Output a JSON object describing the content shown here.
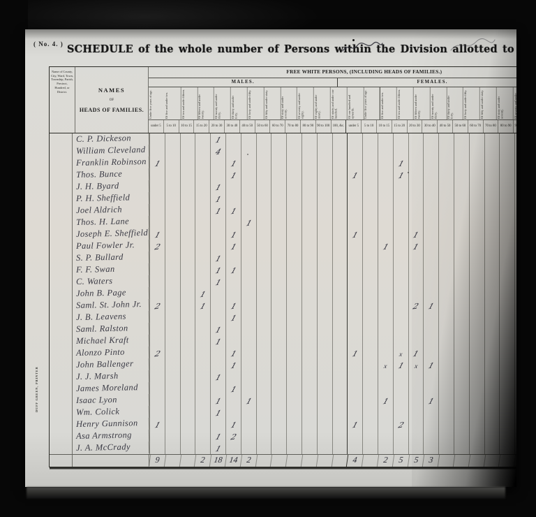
{
  "page": {
    "form_number": "( No. 4. )",
    "title": "SCHEDULE of the whole number of Persons within the Division allotted to",
    "printer_note": "DUFF GREEN, PRINTER"
  },
  "table": {
    "county_header": "Name of County, City, Ward, Town, Township, Parish, Precinct, Hundred, or District.",
    "names_header_line1": "NAMES",
    "names_header_line2": "OF",
    "names_header_line3": "HEADS OF FAMILIES.",
    "section_header": "FREE WHITE PERSONS, (INCLUDING HEADS OF FAMILIES.)",
    "males_header": "MALES.",
    "females_header": "FEMALES.",
    "age_labels_long": [
      "Under five years of age.",
      "Of five and under ten.",
      "Of ten and under fifteen.",
      "Of fifteen and under twenty.",
      "Of twenty and under thirty.",
      "Of thirty and under forty.",
      "Of forty and under fifty.",
      "Of fifty and under sixty.",
      "Of sixty and under seventy.",
      "Of seventy and under eighty.",
      "Of eighty and under ninety.",
      "Of ninety and under one hundred.",
      "Of one hundred and upwards."
    ],
    "age_labels_short": [
      "under 5",
      "5 to 10",
      "10 to 15",
      "15 to 20",
      "20 to 30",
      "30 to 40",
      "40 to 50",
      "50 to 60",
      "60 to 70",
      "70 to 80",
      "80 to 90",
      "90 to 100",
      "100, &c."
    ],
    "rows": [
      {
        "name": "C. P. Dickeson",
        "cells": {
          "4": "1"
        }
      },
      {
        "name": "William Cleveland",
        "cells": {
          "4": "4"
        }
      },
      {
        "name": "Franklin Robinson",
        "cells": {
          "0": "1",
          "5": "1",
          "16": "1"
        }
      },
      {
        "name": "Thos. Bunce",
        "cells": {
          "5": "1",
          "13": "1",
          "16": "1"
        }
      },
      {
        "name": "J. H. Byard",
        "cells": {
          "4": "1"
        }
      },
      {
        "name": "P. H. Sheffield",
        "cells": {
          "4": "1"
        }
      },
      {
        "name": "Joel Aldrich",
        "cells": {
          "4": "1",
          "5": "1"
        }
      },
      {
        "name": "Thos. H. Lane",
        "cells": {
          "6": "1"
        }
      },
      {
        "name": "Joseph E. Sheffield",
        "cells": {
          "0": "1",
          "5": "1",
          "13": "1",
          "17": "1"
        }
      },
      {
        "name": "Paul Fowler Jr.",
        "cells": {
          "0": "2",
          "5": "1",
          "15": "1",
          "17": "1"
        }
      },
      {
        "name": "S. P. Bullard",
        "cells": {
          "4": "1"
        }
      },
      {
        "name": "F. F. Swan",
        "cells": {
          "4": "1",
          "5": "1"
        }
      },
      {
        "name": "C. Waters",
        "cells": {
          "4": "1"
        }
      },
      {
        "name": "John B. Page",
        "cells": {
          "3": "1"
        }
      },
      {
        "name": "Saml. St. John Jr.",
        "cells": {
          "0": "2",
          "3": "1",
          "5": "1",
          "17": "2",
          "18": "1"
        }
      },
      {
        "name": "J. B. Leavens",
        "cells": {
          "5": "1"
        }
      },
      {
        "name": "Saml. Ralston",
        "cells": {
          "4": "1"
        }
      },
      {
        "name": "Michael Kraft",
        "cells": {
          "4": "1"
        }
      },
      {
        "name": "Alonzo Pinto",
        "cells": {
          "0": "2",
          "5": "1",
          "13": "1",
          "16": "x",
          "17": "1"
        }
      },
      {
        "name": "John Ballenger",
        "cells": {
          "5": "1",
          "15": "x",
          "16": "1",
          "17": "x",
          "18": "1"
        }
      },
      {
        "name": "J. J. Marsh",
        "cells": {
          "4": "1"
        }
      },
      {
        "name": "James Moreland",
        "cells": {
          "5": "1"
        }
      },
      {
        "name": "Isaac Lyon",
        "cells": {
          "4": "1",
          "6": "1",
          "15": "1",
          "18": "1"
        }
      },
      {
        "name": "Wm. Colick",
        "cells": {
          "4": "1"
        }
      },
      {
        "name": "Henry Gunnison",
        "cells": {
          "0": "1",
          "5": "1",
          "13": "1",
          "16": "2"
        }
      },
      {
        "name": "Asa Armstrong",
        "cells": {
          "4": "1",
          "5": "2"
        }
      },
      {
        "name": "J. A. McCrady",
        "cells": {
          "4": "1"
        }
      }
    ],
    "totals": {
      "0": "9",
      "3": "2",
      "4": "18",
      "5": "14",
      "6": "2",
      "13": "4",
      "15": "2",
      "16": "5",
      "17": "5",
      "18": "3"
    }
  }
}
